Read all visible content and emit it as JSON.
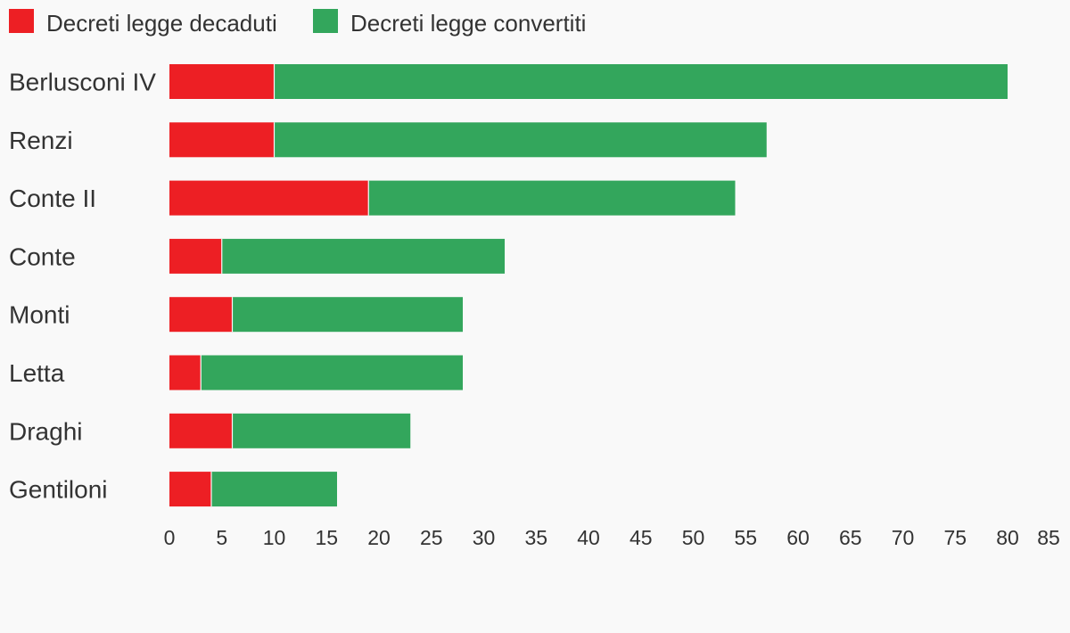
{
  "chart_data": {
    "type": "bar",
    "orientation": "horizontal",
    "stacked": true,
    "categories": [
      "Berlusconi IV",
      "Renzi",
      "Conte II",
      "Conte",
      "Monti",
      "Letta",
      "Draghi",
      "Gentiloni"
    ],
    "series": [
      {
        "name": "Decreti legge decaduti",
        "color": "#ed1f24",
        "values": [
          10,
          10,
          19,
          5,
          6,
          3,
          6,
          4
        ]
      },
      {
        "name": "Decreti legge convertiti",
        "color": "#33a65c",
        "values": [
          70,
          47,
          35,
          27,
          22,
          25,
          17,
          12
        ]
      }
    ],
    "xticks": [
      "0",
      "5",
      "10",
      "15",
      "20",
      "25",
      "30",
      "35",
      "40",
      "45",
      "50",
      "55",
      "60",
      "65",
      "70",
      "75",
      "80",
      "85"
    ],
    "xlim": [
      0,
      85
    ],
    "grid": false,
    "legend_position": "top-left"
  }
}
